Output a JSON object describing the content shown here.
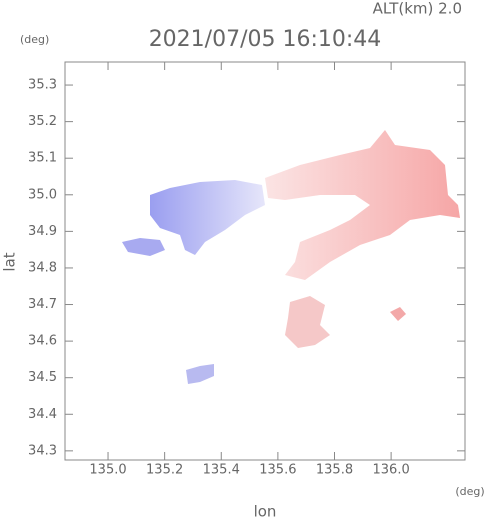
{
  "chart_data": {
    "type": "map",
    "title": "2021/07/05 16:10:44",
    "subtitle": "ALT(km) 2.0",
    "y_unit": "(deg)",
    "x_unit": "(deg)",
    "x_label": "lon",
    "y_label": "lat",
    "xlim": [
      134.848,
      136.261
    ],
    "xticks": [
      {
        "value": 135.0,
        "label": "135.0"
      },
      135.2,
      135.4,
      135.6,
      135.8,
      {
        "value": 136.0,
        "label": "136.0"
      }
    ],
    "ylim": [
      34.275,
      35.363
    ],
    "yticks": [
      34.3,
      34.4,
      34.5,
      34.6,
      34.7,
      34.8,
      34.9,
      {
        "value": 35.0,
        "label": "35.0"
      },
      35.1,
      35.2,
      35.3
    ]
  }
}
